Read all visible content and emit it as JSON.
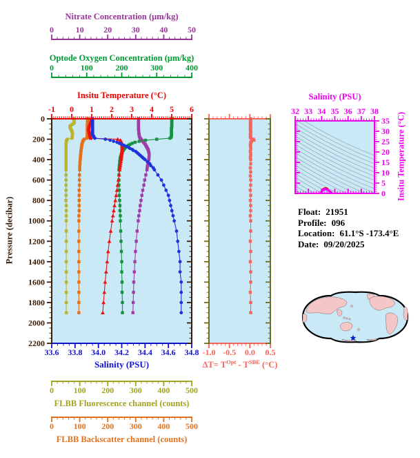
{
  "info": {
    "rows": [
      {
        "label": "Float:",
        "value": "21951"
      },
      {
        "label": "Profile:",
        "value": "096"
      },
      {
        "label": "Location:",
        "value": "61.1°S  -173.4°E"
      },
      {
        "label": "Date:",
        "value": "09/20/2025"
      }
    ]
  },
  "map": {
    "colors": {
      "land": "#F5C6C6",
      "ocean": "#C8E9F5",
      "outline": "#000000",
      "star": "#0022CC"
    },
    "star_icon": "float-position-star"
  },
  "chart_data": {
    "type": "line",
    "background": "#C8E9F5",
    "profile": {
      "axes": {
        "pressure": {
          "label": "Pressure (decibar)",
          "min": 0,
          "max": 2200,
          "ticks": [
            "0",
            "200",
            "400",
            "600",
            "800",
            "1000",
            "1200",
            "1400",
            "1600",
            "1800",
            "2000",
            "2200"
          ],
          "minor": 50,
          "color": "#3B1E08"
        },
        "temperature": {
          "label": "Insitu Temperature (°C)",
          "min": -1,
          "max": 6,
          "ticks": [
            "-1",
            "0",
            "1",
            "2",
            "3",
            "4",
            "5",
            "6"
          ],
          "minor": 0.1,
          "color": "#EE0000"
        },
        "salinity": {
          "label": "Salinity (PSU)",
          "min": 33.6,
          "max": 34.8,
          "ticks": [
            "33.6",
            "33.8",
            "34.0",
            "34.2",
            "34.4",
            "34.6",
            "34.8"
          ],
          "minor": 0.05,
          "color": "#1212CC"
        },
        "oxygen": {
          "label": "Optode Oxygen Concentration (μm/kg)",
          "min": 0,
          "max": 400,
          "ticks": [
            "0",
            "100",
            "200",
            "300",
            "400"
          ],
          "minor": 20,
          "color": "#009933"
        },
        "nitrate": {
          "label": "Nitrate Concentration (μm/kg)",
          "min": 0,
          "max": 50,
          "ticks": [
            "0",
            "10",
            "20",
            "30",
            "40",
            "50"
          ],
          "minor": 2,
          "color": "#993399"
        },
        "fluorescence": {
          "label": "FLBB Fluorescence channel (counts)",
          "min": 0,
          "max": 500,
          "ticks": [
            "0",
            "100",
            "200",
            "300",
            "400",
            "500"
          ],
          "minor": 20,
          "color": "#A0A41E"
        },
        "backscatter": {
          "label": "FLBB Backscatter channel (counts)",
          "min": 0,
          "max": 500,
          "ticks": [
            "0",
            "100",
            "200",
            "300",
            "400",
            "500"
          ],
          "minor": 20,
          "color": "#E2711D"
        }
      },
      "pressures": [
        0,
        10,
        20,
        30,
        40,
        50,
        60,
        70,
        80,
        90,
        100,
        110,
        120,
        130,
        140,
        150,
        160,
        170,
        180,
        190,
        200,
        210,
        220,
        230,
        240,
        250,
        260,
        270,
        280,
        290,
        300,
        310,
        320,
        330,
        340,
        350,
        360,
        370,
        380,
        390,
        400,
        420,
        440,
        460,
        480,
        500,
        550,
        600,
        650,
        700,
        750,
        800,
        850,
        900,
        950,
        1000,
        1100,
        1200,
        1300,
        1400,
        1500,
        1600,
        1700,
        1800,
        1900
      ],
      "series": [
        {
          "id": "fluorescence",
          "axis": "fluorescence",
          "color": "#BCB32E",
          "marker": "square",
          "values": [
            78,
            79,
            80,
            81,
            80,
            76,
            70,
            66,
            65,
            66,
            68,
            70,
            72,
            73,
            74,
            74,
            74,
            73,
            73,
            72,
            56,
            53,
            52,
            52,
            51,
            51,
            51,
            51,
            51,
            51,
            51,
            51,
            51,
            51,
            51,
            51,
            51,
            51,
            51,
            51,
            51,
            51,
            51,
            51,
            51,
            51,
            51,
            51,
            51,
            51,
            51,
            51,
            52,
            52,
            52,
            52,
            52,
            52,
            52,
            52,
            52,
            52,
            52,
            52,
            52
          ]
        },
        {
          "id": "backscatter",
          "axis": "backscatter",
          "color": "#E2711D",
          "marker": "square",
          "values": [
            128,
            128,
            128,
            128,
            128,
            128,
            127,
            127,
            127,
            127,
            127,
            127,
            127,
            127,
            127,
            127,
            127,
            127,
            126,
            125,
            116,
            113,
            111,
            110,
            109,
            108,
            107,
            107,
            106,
            106,
            105,
            105,
            104,
            104,
            104,
            103,
            103,
            103,
            102,
            102,
            102,
            101,
            101,
            100,
            100,
            100,
            99,
            99,
            99,
            98,
            98,
            98,
            98,
            98,
            97,
            97,
            97,
            97,
            97,
            97,
            97,
            97,
            97,
            97,
            97
          ]
        },
        {
          "id": "nitrate",
          "axis": "nitrate",
          "color": "#A03CA8",
          "marker": "square",
          "values": [
            31.0,
            31.0,
            31.0,
            31.0,
            31.0,
            31.0,
            31.0,
            31.0,
            31.0,
            31.0,
            31.0,
            31.0,
            31.1,
            31.1,
            31.1,
            31.2,
            31.2,
            31.3,
            31.4,
            31.6,
            31.9,
            32.2,
            32.5,
            32.8,
            33.1,
            33.4,
            33.6,
            33.8,
            34.0,
            34.2,
            34.4,
            34.5,
            34.6,
            34.7,
            34.75,
            34.8,
            34.8,
            34.78,
            34.74,
            34.7,
            34.65,
            34.5,
            34.35,
            34.2,
            34.1,
            34.0,
            33.6,
            33.2,
            32.9,
            32.5,
            32.2,
            31.9,
            31.6,
            31.4,
            31.1,
            30.9,
            30.5,
            30.2,
            29.9,
            29.7,
            29.5,
            29.3,
            29.2,
            29.1,
            29.0
          ]
        },
        {
          "id": "oxygen",
          "axis": "oxygen",
          "color": "#159141",
          "marker": "square",
          "values": [
            343,
            343,
            343,
            343,
            343,
            343,
            343,
            343,
            343,
            342,
            342,
            342,
            342,
            342,
            342,
            342,
            342,
            342,
            341,
            338,
            300,
            268,
            250,
            238,
            230,
            224,
            219,
            215,
            211,
            208,
            206,
            204,
            202,
            201,
            200,
            199,
            198,
            197,
            196,
            196,
            195,
            194,
            194,
            193,
            193,
            192,
            192,
            192,
            192,
            193,
            193,
            194,
            195,
            195,
            196,
            196,
            197,
            198,
            199,
            200,
            200,
            201,
            201,
            202,
            202
          ]
        },
        {
          "id": "temperature",
          "axis": "temperature",
          "color": "#EE1111",
          "marker": "triangle",
          "values": [
            0.97,
            0.97,
            0.96,
            0.94,
            0.92,
            0.9,
            0.88,
            0.87,
            0.86,
            0.85,
            0.85,
            0.86,
            0.87,
            0.88,
            0.89,
            0.9,
            0.91,
            0.92,
            0.93,
            0.95,
            2.3,
            2.44,
            2.47,
            2.49,
            2.5,
            2.51,
            2.52,
            2.52,
            2.52,
            2.52,
            2.52,
            2.51,
            2.51,
            2.5,
            2.5,
            2.49,
            2.49,
            2.48,
            2.48,
            2.47,
            2.47,
            2.46,
            2.44,
            2.43,
            2.41,
            2.4,
            2.37,
            2.33,
            2.29,
            2.26,
            2.22,
            2.18,
            2.14,
            2.1,
            2.06,
            2.02,
            1.95,
            1.88,
            1.82,
            1.77,
            1.72,
            1.67,
            1.63,
            1.59,
            1.55
          ]
        },
        {
          "id": "salinity",
          "axis": "salinity",
          "color": "#1C33DD",
          "marker": "circle",
          "values": [
            33.95,
            33.95,
            33.95,
            33.95,
            33.95,
            33.95,
            33.95,
            33.95,
            33.95,
            33.95,
            33.95,
            33.95,
            33.95,
            33.95,
            33.95,
            33.95,
            33.95,
            33.96,
            33.96,
            33.97,
            34.06,
            34.1,
            34.13,
            34.16,
            34.18,
            34.2,
            34.22,
            34.24,
            34.26,
            34.27,
            34.29,
            34.3,
            34.32,
            34.33,
            34.34,
            34.35,
            34.36,
            34.37,
            34.38,
            34.39,
            34.4,
            34.42,
            34.44,
            34.45,
            34.47,
            34.48,
            34.51,
            34.54,
            34.56,
            34.58,
            34.6,
            34.61,
            34.62,
            34.63,
            34.64,
            34.65,
            34.67,
            34.68,
            34.69,
            34.7,
            34.7,
            34.71,
            34.71,
            34.71,
            34.71
          ]
        }
      ]
    },
    "delta": {
      "title": {
        "pre": "ΔT= T",
        "sup1": "Opt",
        "mid": " - T",
        "sup2": "SBE",
        "post": " (°C)"
      },
      "axis": {
        "min": -1.0,
        "max": 0.5,
        "ticks": [
          "-1.0",
          "-0.5",
          "0.0",
          "0.5"
        ],
        "minor": 0.1,
        "color": "#F8635A"
      },
      "side_color": "#6E6E1C",
      "marker": "square",
      "pressures": [
        0,
        10,
        20,
        30,
        40,
        50,
        60,
        70,
        80,
        90,
        100,
        110,
        120,
        130,
        140,
        150,
        160,
        170,
        180,
        190,
        200,
        210,
        220,
        230,
        240,
        250,
        260,
        280,
        300,
        320,
        340,
        360,
        380,
        400,
        440,
        480,
        520,
        560,
        600,
        650,
        700,
        750,
        800,
        850,
        900,
        950,
        1000,
        1100,
        1200,
        1300,
        1400,
        1500,
        1600,
        1700,
        1800,
        1900
      ],
      "values": [
        0.02,
        0.02,
        0.01,
        0.02,
        0.02,
        0.01,
        0.02,
        0.02,
        0.01,
        0.02,
        0.02,
        0.01,
        0.02,
        0.02,
        0.02,
        0.01,
        0.02,
        0.02,
        0.01,
        0.03,
        0.08,
        0.1,
        0.04,
        0.02,
        0.02,
        0.02,
        0.01,
        0.02,
        0.02,
        0.01,
        0.02,
        0.02,
        0.01,
        0.02,
        0.02,
        0.01,
        0.02,
        0.01,
        0.02,
        0.02,
        0.01,
        0.02,
        0.01,
        0.02,
        0.02,
        0.01,
        0.02,
        0.02,
        0.01,
        0.02,
        0.01,
        0.02,
        0.02,
        0.01,
        0.02,
        0.02
      ]
    },
    "ts": {
      "x_axis": {
        "label": "Salinity (PSU)",
        "min": 32,
        "max": 38,
        "ticks": [
          "32",
          "33",
          "34",
          "35",
          "36",
          "37",
          "38"
        ],
        "minor": 0.2,
        "color": "#EE00EE"
      },
      "y_axis": {
        "label": "Insitu Temperature (°C)",
        "min": 0,
        "max": 35,
        "ticks": [
          "0",
          "5",
          "10",
          "15",
          "20",
          "25",
          "30",
          "35"
        ],
        "minor": 1,
        "color": "#EE00EE"
      },
      "contours": {
        "count": 19,
        "color": "#9FABB5"
      },
      "curve_magenta": {
        "color": "#EE00EE",
        "points": [
          [
            33.95,
            0.2
          ],
          [
            33.97,
            0.55
          ],
          [
            34.01,
            0.95
          ],
          [
            34.06,
            1.4
          ],
          [
            34.12,
            1.75
          ],
          [
            34.19,
            2.0
          ],
          [
            34.26,
            2.1
          ],
          [
            34.33,
            2.08
          ],
          [
            34.4,
            1.95
          ],
          [
            34.47,
            1.72
          ],
          [
            34.53,
            1.45
          ],
          [
            34.59,
            1.15
          ],
          [
            34.64,
            0.85
          ],
          [
            34.68,
            0.55
          ],
          [
            34.71,
            0.3
          ]
        ]
      },
      "curve_red": {
        "color": "#EE1111",
        "points": [
          [
            33.99,
            0.8
          ],
          [
            34.03,
            1.3
          ],
          [
            34.09,
            1.8
          ],
          [
            34.17,
            2.2
          ],
          [
            34.26,
            2.42
          ],
          [
            34.35,
            2.42
          ],
          [
            34.42,
            2.2
          ]
        ]
      }
    }
  }
}
